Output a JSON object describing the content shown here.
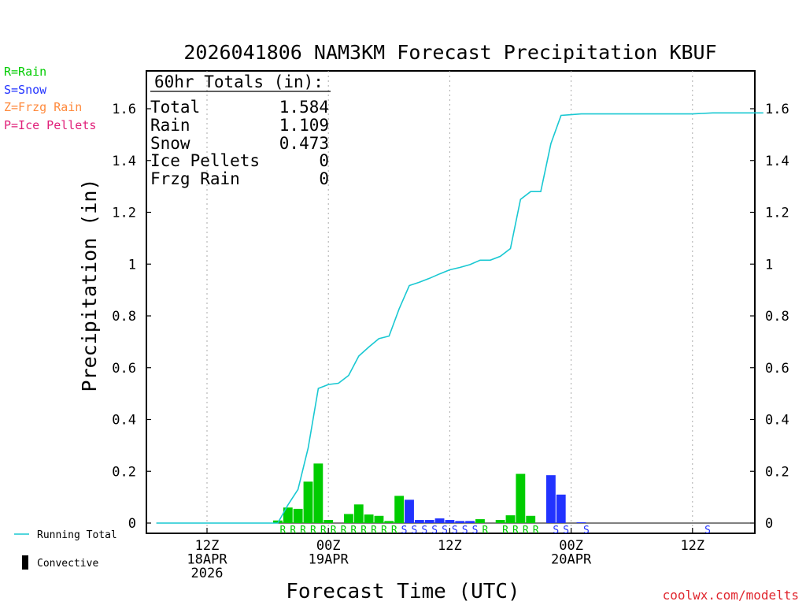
{
  "colors": {
    "rain": "#00cc00",
    "snow": "#2233ff",
    "frzg_rain": "#ff8a3d",
    "ice_pellets": "#e0207a",
    "running_total": "#19c8d2",
    "credit": "#e0262e"
  },
  "precip_type_legend": [
    {
      "label": "R=Rain",
      "color": "#00cc00"
    },
    {
      "label": "S=Snow",
      "color": "#2233ff"
    },
    {
      "label": "Z=Frzg Rain",
      "color": "#ff8a3d"
    },
    {
      "label": "P=Ice Pellets",
      "color": "#e0207a"
    }
  ],
  "totals_box": {
    "header": "60hr Totals (in):",
    "rows": [
      {
        "label": "Total",
        "value": "1.584"
      },
      {
        "label": "Rain",
        "value": "1.109"
      },
      {
        "label": "Snow",
        "value": "0.473"
      },
      {
        "label": "Ice Pellets",
        "value": "0"
      },
      {
        "label": "Frzg Rain",
        "value": "0"
      }
    ]
  },
  "bottom_legend": {
    "running_total": "Running Total",
    "convective": "Convective"
  },
  "credit": "coolwx.com/modelts",
  "chart_data": {
    "type": "bar",
    "title": "2026041806 NAM3KM Forecast Precipitation KBUF",
    "xlabel": "Forecast Time (UTC)",
    "ylabel": "Precipitation (in)",
    "ylim": [
      0,
      1.75
    ],
    "xlim": [
      -5,
      55
    ],
    "yticks": [
      0,
      0.2,
      0.4,
      0.6,
      0.8,
      1,
      1.2,
      1.4,
      1.6
    ],
    "ytick_labels": [
      "0",
      "0.2",
      "0.4",
      "0.6",
      "0.8",
      "1",
      "1.2",
      "1.4",
      "1.6"
    ],
    "xticks": [
      {
        "hour": 0,
        "lines": [
          "12Z",
          "18APR",
          "2026"
        ]
      },
      {
        "hour": 12,
        "lines": [
          "00Z",
          "19APR"
        ]
      },
      {
        "hour": 24,
        "lines": [
          "12Z"
        ]
      },
      {
        "hour": 36,
        "lines": [
          "00Z",
          "20APR"
        ]
      },
      {
        "hour": 48,
        "lines": [
          "12Z"
        ]
      }
    ],
    "grid": "vertical dotted at 12-hour ticks",
    "hourly_bars": [
      {
        "hour": 7,
        "value": 0.01,
        "type": "rain"
      },
      {
        "hour": 8,
        "value": 0.06,
        "type": "rain"
      },
      {
        "hour": 9,
        "value": 0.055,
        "type": "rain"
      },
      {
        "hour": 10,
        "value": 0.16,
        "type": "rain"
      },
      {
        "hour": 11,
        "value": 0.23,
        "type": "rain"
      },
      {
        "hour": 12,
        "value": 0.012,
        "type": "rain"
      },
      {
        "hour": 14,
        "value": 0.035,
        "type": "rain"
      },
      {
        "hour": 15,
        "value": 0.072,
        "type": "rain"
      },
      {
        "hour": 16,
        "value": 0.033,
        "type": "rain"
      },
      {
        "hour": 17,
        "value": 0.028,
        "type": "rain"
      },
      {
        "hour": 18,
        "value": 0.008,
        "type": "rain"
      },
      {
        "hour": 19,
        "value": 0.105,
        "type": "rain"
      },
      {
        "hour": 20,
        "value": 0.09,
        "type": "snow"
      },
      {
        "hour": 21,
        "value": 0.012,
        "type": "snow"
      },
      {
        "hour": 22,
        "value": 0.012,
        "type": "snow"
      },
      {
        "hour": 23,
        "value": 0.018,
        "type": "snow"
      },
      {
        "hour": 24,
        "value": 0.012,
        "type": "snow"
      },
      {
        "hour": 25,
        "value": 0.008,
        "type": "snow"
      },
      {
        "hour": 26,
        "value": 0.008,
        "type": "snow"
      },
      {
        "hour": 27,
        "value": 0.015,
        "type": "rain"
      },
      {
        "hour": 29,
        "value": 0.012,
        "type": "rain"
      },
      {
        "hour": 30,
        "value": 0.03,
        "type": "rain"
      },
      {
        "hour": 31,
        "value": 0.19,
        "type": "rain"
      },
      {
        "hour": 32,
        "value": 0.028,
        "type": "rain"
      },
      {
        "hour": 34,
        "value": 0.185,
        "type": "snow"
      },
      {
        "hour": 35,
        "value": 0.11,
        "type": "snow"
      },
      {
        "hour": 37,
        "value": 0.003,
        "type": "snow"
      }
    ],
    "precip_type_labels": [
      {
        "hour": 8,
        "letter": "R"
      },
      {
        "hour": 9,
        "letter": "R"
      },
      {
        "hour": 10,
        "letter": "R"
      },
      {
        "hour": 11,
        "letter": "R"
      },
      {
        "hour": 12,
        "letter": "R"
      },
      {
        "hour": 13,
        "letter": "R"
      },
      {
        "hour": 14,
        "letter": "R"
      },
      {
        "hour": 15,
        "letter": "R"
      },
      {
        "hour": 16,
        "letter": "R"
      },
      {
        "hour": 17,
        "letter": "R"
      },
      {
        "hour": 18,
        "letter": "R"
      },
      {
        "hour": 19,
        "letter": "R"
      },
      {
        "hour": 20,
        "letter": "S"
      },
      {
        "hour": 21,
        "letter": "S"
      },
      {
        "hour": 22,
        "letter": "S"
      },
      {
        "hour": 23,
        "letter": "S"
      },
      {
        "hour": 24,
        "letter": "S"
      },
      {
        "hour": 25,
        "letter": "S"
      },
      {
        "hour": 26,
        "letter": "S"
      },
      {
        "hour": 27,
        "letter": "S"
      },
      {
        "hour": 28,
        "letter": "R"
      },
      {
        "hour": 30,
        "letter": "R"
      },
      {
        "hour": 31,
        "letter": "R"
      },
      {
        "hour": 32,
        "letter": "R"
      },
      {
        "hour": 33,
        "letter": "R"
      },
      {
        "hour": 35,
        "letter": "S"
      },
      {
        "hour": 36,
        "letter": "S"
      },
      {
        "hour": 38,
        "letter": "S"
      },
      {
        "hour": 50,
        "letter": "S"
      }
    ],
    "running_total": {
      "hours": [
        -5,
        7,
        8,
        9,
        10,
        11,
        12,
        13,
        14,
        15,
        16,
        17,
        18,
        19,
        20,
        21,
        22,
        23,
        24,
        25,
        26,
        27,
        28,
        29,
        30,
        31,
        32,
        33,
        34,
        35,
        36,
        37,
        38,
        48,
        50,
        55
      ],
      "values": [
        0,
        0,
        0.07,
        0.13,
        0.29,
        0.52,
        0.535,
        0.54,
        0.57,
        0.645,
        0.68,
        0.712,
        0.722,
        0.827,
        0.917,
        0.93,
        0.945,
        0.962,
        0.978,
        0.987,
        0.998,
        1.015,
        1.015,
        1.03,
        1.06,
        1.25,
        1.28,
        1.28,
        1.465,
        1.574,
        1.577,
        1.58,
        1.58,
        1.58,
        1.584,
        1.584
      ]
    }
  }
}
